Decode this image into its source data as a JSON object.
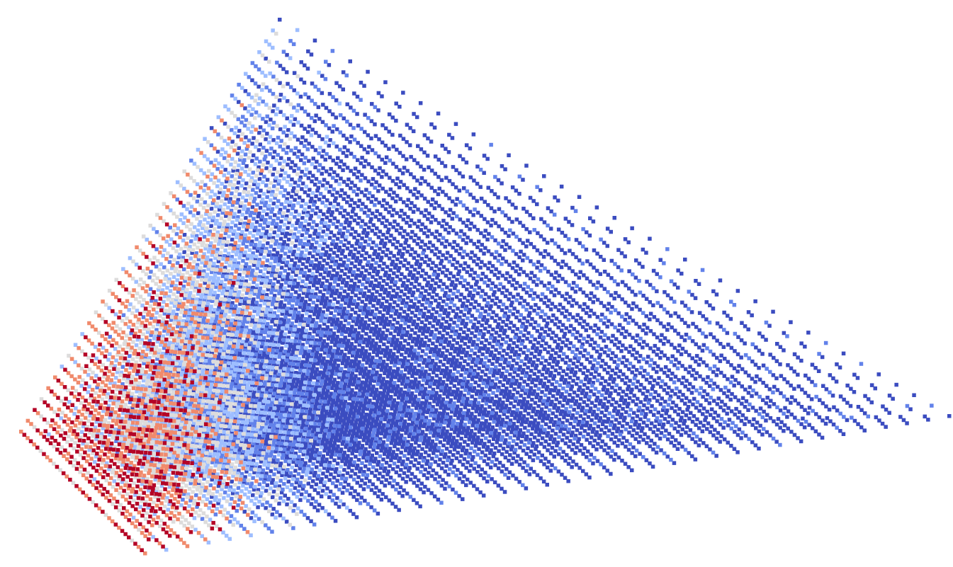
{
  "scene": {
    "type": "point-cloud",
    "colormap": [
      "#b40426",
      "#f08a6c",
      "#dddcdc",
      "#9ebeff",
      "#6282ea",
      "#3b4cc0"
    ]
  }
}
